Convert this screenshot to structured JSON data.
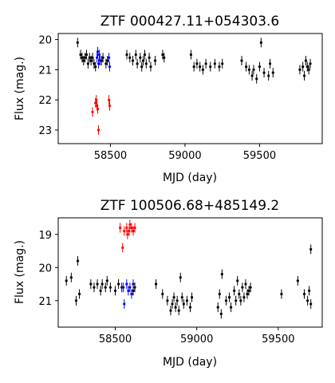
{
  "chart_data": [
    {
      "type": "scatter",
      "title": "ZTF 000427.11+054303.6",
      "xlabel": "MJD (day)",
      "ylabel": "Flux (mag.)",
      "xlim": [
        58150,
        59920
      ],
      "ylim": [
        23.45,
        19.8
      ],
      "y_inverted": true,
      "xticks": [
        58500,
        59000,
        59500
      ],
      "yticks": [
        20,
        21,
        22,
        23
      ],
      "series": [
        {
          "color": "#000000",
          "points": [
            [
              58280,
              20.1
            ],
            [
              58300,
              20.5
            ],
            [
              58310,
              20.6
            ],
            [
              58320,
              20.7
            ],
            [
              58330,
              20.6
            ],
            [
              58340,
              20.5
            ],
            [
              58350,
              20.8
            ],
            [
              58360,
              20.6
            ],
            [
              58370,
              20.7
            ],
            [
              58380,
              20.6
            ],
            [
              58390,
              20.8
            ],
            [
              58400,
              20.9
            ],
            [
              58440,
              20.7
            ],
            [
              58450,
              20.6
            ],
            [
              58470,
              20.8
            ],
            [
              58480,
              20.7
            ],
            [
              58610,
              20.5
            ],
            [
              58630,
              20.6
            ],
            [
              58650,
              20.7
            ],
            [
              58670,
              20.5
            ],
            [
              58680,
              20.8
            ],
            [
              58700,
              20.6
            ],
            [
              58710,
              20.9
            ],
            [
              58720,
              20.7
            ],
            [
              58730,
              20.5
            ],
            [
              58740,
              20.8
            ],
            [
              58760,
              20.6
            ],
            [
              58770,
              20.9
            ],
            [
              58800,
              20.7
            ],
            [
              58850,
              20.5
            ],
            [
              58860,
              20.6
            ],
            [
              59040,
              20.5
            ],
            [
              59060,
              20.9
            ],
            [
              59080,
              20.8
            ],
            [
              59100,
              20.9
            ],
            [
              59120,
              21.0
            ],
            [
              59140,
              20.8
            ],
            [
              59170,
              20.9
            ],
            [
              59200,
              20.8
            ],
            [
              59230,
              20.9
            ],
            [
              59250,
              20.8
            ],
            [
              59380,
              20.7
            ],
            [
              59410,
              20.9
            ],
            [
              59430,
              21.0
            ],
            [
              59450,
              21.2
            ],
            [
              59460,
              21.0
            ],
            [
              59480,
              21.3
            ],
            [
              59500,
              20.9
            ],
            [
              59510,
              20.1
            ],
            [
              59530,
              21.1
            ],
            [
              59560,
              21.2
            ],
            [
              59570,
              20.8
            ],
            [
              59590,
              21.1
            ],
            [
              59770,
              21.0
            ],
            [
              59790,
              20.9
            ],
            [
              59800,
              21.2
            ],
            [
              59810,
              20.7
            ],
            [
              59820,
              20.9
            ],
            [
              59830,
              21.0
            ],
            [
              59840,
              20.8
            ]
          ]
        },
        {
          "color": "#0000ff",
          "points": [
            [
              58410,
              20.6
            ],
            [
              58415,
              20.4
            ],
            [
              58420,
              20.8
            ],
            [
              58425,
              20.5
            ],
            [
              58430,
              20.7
            ],
            [
              58490,
              20.6
            ],
            [
              58495,
              20.9
            ]
          ]
        },
        {
          "color": "#ff0000",
          "points": [
            [
              58380,
              22.4
            ],
            [
              58400,
              22.1
            ],
            [
              58405,
              22.0
            ],
            [
              58410,
              22.2
            ],
            [
              58415,
              22.3
            ],
            [
              58420,
              23.0
            ],
            [
              58490,
              22.0
            ],
            [
              58495,
              22.2
            ]
          ]
        }
      ]
    },
    {
      "type": "scatter",
      "title": "ZTF 100506.68+485149.2",
      "xlabel": "MJD (day)",
      "ylabel": "Flux (mag.)",
      "xlim": [
        58150,
        59770
      ],
      "ylim": [
        21.8,
        18.5
      ],
      "y_inverted": true,
      "xticks": [
        58500,
        59000,
        59500
      ],
      "yticks": [
        19,
        20,
        21
      ],
      "series": [
        {
          "color": "#000000",
          "points": [
            [
              58200,
              20.4
            ],
            [
              58230,
              20.3
            ],
            [
              58260,
              21.0
            ],
            [
              58270,
              19.8
            ],
            [
              58280,
              20.8
            ],
            [
              58350,
              20.5
            ],
            [
              58370,
              20.6
            ],
            [
              58390,
              20.5
            ],
            [
              58410,
              20.7
            ],
            [
              58420,
              20.5
            ],
            [
              58440,
              20.6
            ],
            [
              58450,
              20.4
            ],
            [
              58470,
              20.6
            ],
            [
              58500,
              20.7
            ],
            [
              58520,
              20.5
            ],
            [
              58540,
              20.6
            ],
            [
              58610,
              20.7
            ],
            [
              58620,
              20.6
            ],
            [
              58750,
              20.5
            ],
            [
              58790,
              20.8
            ],
            [
              58820,
              21.0
            ],
            [
              58840,
              21.3
            ],
            [
              58850,
              21.1
            ],
            [
              58860,
              20.9
            ],
            [
              58870,
              21.2
            ],
            [
              58880,
              21.0
            ],
            [
              58890,
              21.3
            ],
            [
              58900,
              20.3
            ],
            [
              58910,
              20.9
            ],
            [
              58920,
              21.1
            ],
            [
              58940,
              21.0
            ],
            [
              58960,
              21.2
            ],
            [
              58970,
              20.9
            ],
            [
              59130,
              21.2
            ],
            [
              59140,
              20.8
            ],
            [
              59150,
              21.4
            ],
            [
              59155,
              20.2
            ],
            [
              59180,
              21.0
            ],
            [
              59200,
              20.9
            ],
            [
              59210,
              21.2
            ],
            [
              59230,
              20.7
            ],
            [
              59240,
              21.0
            ],
            [
              59250,
              20.4
            ],
            [
              59260,
              20.8
            ],
            [
              59270,
              21.0
            ],
            [
              59280,
              20.6
            ],
            [
              59290,
              20.9
            ],
            [
              59300,
              20.5
            ],
            [
              59310,
              20.8
            ],
            [
              59320,
              20.7
            ],
            [
              59330,
              20.6
            ],
            [
              59520,
              20.8
            ],
            [
              59620,
              20.4
            ],
            [
              59660,
              20.8
            ],
            [
              59680,
              21.0
            ],
            [
              59690,
              20.7
            ],
            [
              59700,
              21.1
            ],
            [
              59700,
              19.45
            ]
          ]
        },
        {
          "color": "#0000ff",
          "points": [
            [
              58550,
              20.6
            ],
            [
              58555,
              21.1
            ],
            [
              58570,
              20.5
            ],
            [
              58580,
              20.7
            ],
            [
              58590,
              20.6
            ],
            [
              58600,
              20.8
            ],
            [
              58610,
              20.5
            ]
          ]
        },
        {
          "color": "#ff0000",
          "points": [
            [
              58530,
              18.8
            ],
            [
              58545,
              19.4
            ],
            [
              58555,
              18.9
            ],
            [
              58570,
              18.8
            ],
            [
              58575,
              19.0
            ],
            [
              58585,
              18.9
            ],
            [
              58590,
              18.7
            ],
            [
              58600,
              18.8
            ],
            [
              58610,
              18.9
            ],
            [
              58620,
              18.8
            ]
          ]
        }
      ]
    }
  ]
}
